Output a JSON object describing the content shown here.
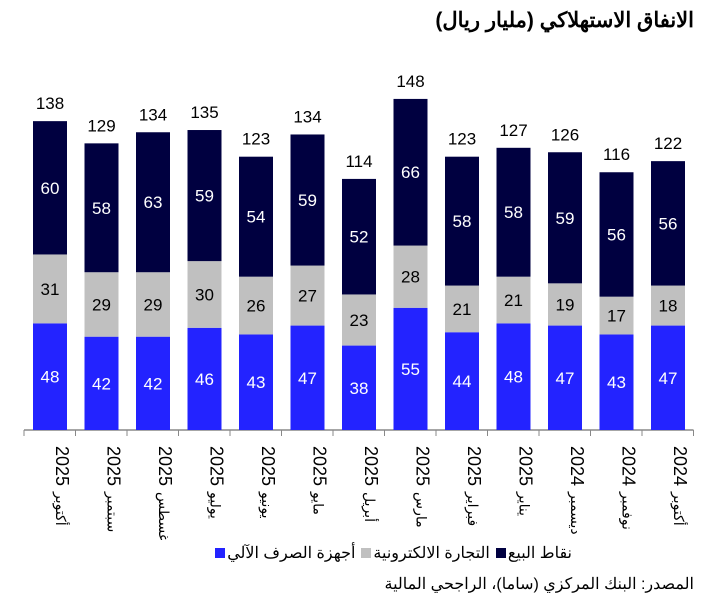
{
  "chart_data": {
    "type": "bar",
    "stacked": true,
    "title": "الانفاق الاستهلاكي (مليار ريال)",
    "categories": [
      {
        "month": "أكتوبر",
        "year": "2025"
      },
      {
        "month": "سبتمبر",
        "year": "2025"
      },
      {
        "month": "أغسطس",
        "year": "2025"
      },
      {
        "month": "يوليو",
        "year": "2025"
      },
      {
        "month": "يونيو",
        "year": "2025"
      },
      {
        "month": "مايو",
        "year": "2025"
      },
      {
        "month": "أبريل",
        "year": "2025"
      },
      {
        "month": "مارس",
        "year": "2025"
      },
      {
        "month": "فبراير",
        "year": "2025"
      },
      {
        "month": "يناير",
        "year": "2025"
      },
      {
        "month": "ديسمبر",
        "year": "2024"
      },
      {
        "month": "نوفمبر",
        "year": "2024"
      },
      {
        "month": "أكتوبر",
        "year": "2024"
      }
    ],
    "series": [
      {
        "name": "أجهزة الصرف الآلي",
        "color": "#2323ff",
        "label_color": "#ffffff",
        "values": [
          48,
          42,
          42,
          46,
          43,
          47,
          38,
          55,
          44,
          48,
          47,
          43,
          47
        ]
      },
      {
        "name": "التجارة الالكترونية",
        "color": "#c0c0c0",
        "label_color": "#000000",
        "values": [
          31,
          29,
          29,
          30,
          26,
          27,
          23,
          28,
          21,
          21,
          19,
          17,
          18
        ]
      },
      {
        "name": "نقاط البيع",
        "color": "#000040",
        "label_color": "#ffffff",
        "values": [
          60,
          58,
          63,
          59,
          54,
          59,
          52,
          66,
          58,
          58,
          59,
          56,
          56
        ]
      }
    ],
    "totals": [
      138,
      129,
      134,
      135,
      123,
      134,
      114,
      148,
      123,
      127,
      126,
      116,
      122
    ],
    "legend_position": "bottom",
    "grid": false,
    "ylim": [
      0,
      150
    ]
  },
  "legend_order": [
    2,
    1,
    0
  ],
  "source": "المصدر: البنك المركزي (ساما)، الراجحي المالية"
}
